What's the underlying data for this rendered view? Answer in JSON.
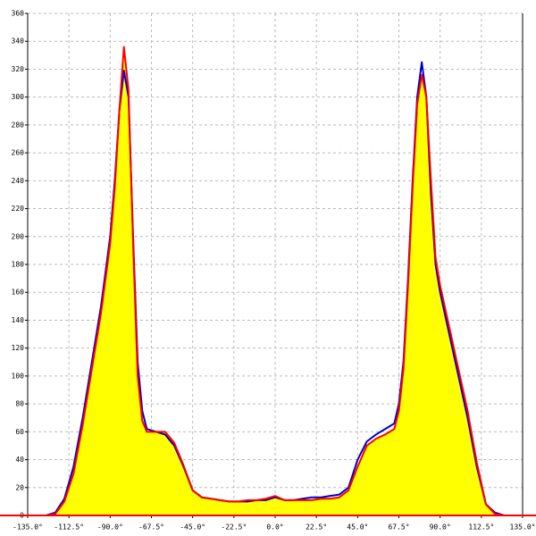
{
  "chart_data": {
    "type": "area",
    "x": [
      -135,
      -125,
      -120,
      -115,
      -110,
      -105,
      -100,
      -95,
      -90,
      -87.5,
      -85,
      -82.5,
      -80,
      -77.5,
      -75,
      -72.5,
      -70,
      -65,
      -60,
      -55,
      -50,
      -45,
      -40,
      -35,
      -30,
      -25,
      -20,
      -15,
      -10,
      -5,
      0,
      5,
      10,
      15,
      20,
      25,
      30,
      35,
      40,
      45,
      50,
      55,
      60,
      65,
      67.5,
      70,
      72.5,
      75,
      77.5,
      80,
      82.5,
      85,
      87.5,
      90,
      95,
      100,
      105,
      110,
      115,
      120,
      125,
      135
    ],
    "series": [
      {
        "color": "#0000cc",
        "values": [
          0,
          0,
          2,
          12,
          35,
          70,
          110,
          150,
          200,
          240,
          290,
          319,
          300,
          200,
          110,
          75,
          62,
          60,
          58,
          50,
          35,
          18,
          13,
          12,
          11,
          10,
          10,
          10,
          11,
          11,
          13,
          11,
          11,
          12,
          13,
          13,
          14,
          15,
          20,
          40,
          53,
          58,
          62,
          66,
          80,
          110,
          170,
          240,
          300,
          325,
          300,
          230,
          180,
          160,
          130,
          100,
          70,
          35,
          8,
          2,
          0,
          0
        ]
      },
      {
        "color": "#ff0000",
        "fill": "#ffff00",
        "values": [
          0,
          0,
          1,
          10,
          30,
          65,
          105,
          145,
          195,
          235,
          290,
          336,
          305,
          195,
          100,
          68,
          60,
          60,
          60,
          52,
          36,
          18,
          13,
          12,
          11,
          10,
          10,
          11,
          11,
          12,
          14,
          11,
          11,
          11,
          11,
          12,
          12,
          13,
          18,
          35,
          50,
          55,
          58,
          62,
          75,
          105,
          165,
          235,
          295,
          316,
          300,
          240,
          185,
          165,
          135,
          105,
          75,
          38,
          8,
          1,
          0,
          0
        ]
      }
    ],
    "xlim": [
      -135,
      135
    ],
    "xticks": [
      {
        "value": -135,
        "label": "-135.0°"
      },
      {
        "value": -112.5,
        "label": "-112.5°"
      },
      {
        "value": -90,
        "label": "-90.0°"
      },
      {
        "value": -67.5,
        "label": "-67.5°"
      },
      {
        "value": -45,
        "label": "-45.0°"
      },
      {
        "value": -22.5,
        "label": "-22.5°"
      },
      {
        "value": 0,
        "label": "0.0°"
      },
      {
        "value": 22.5,
        "label": "22.5°"
      },
      {
        "value": 45,
        "label": "45.0°"
      },
      {
        "value": 67.5,
        "label": "67.5°"
      },
      {
        "value": 90,
        "label": "90.0°"
      },
      {
        "value": 112.5,
        "label": "112.5°"
      },
      {
        "value": 135,
        "label": "135.0°"
      }
    ],
    "ylim": [
      0,
      360
    ],
    "yticks": [
      0,
      20,
      40,
      60,
      80,
      100,
      120,
      140,
      160,
      180,
      200,
      220,
      240,
      260,
      280,
      300,
      320,
      340,
      360
    ],
    "grid": true
  }
}
